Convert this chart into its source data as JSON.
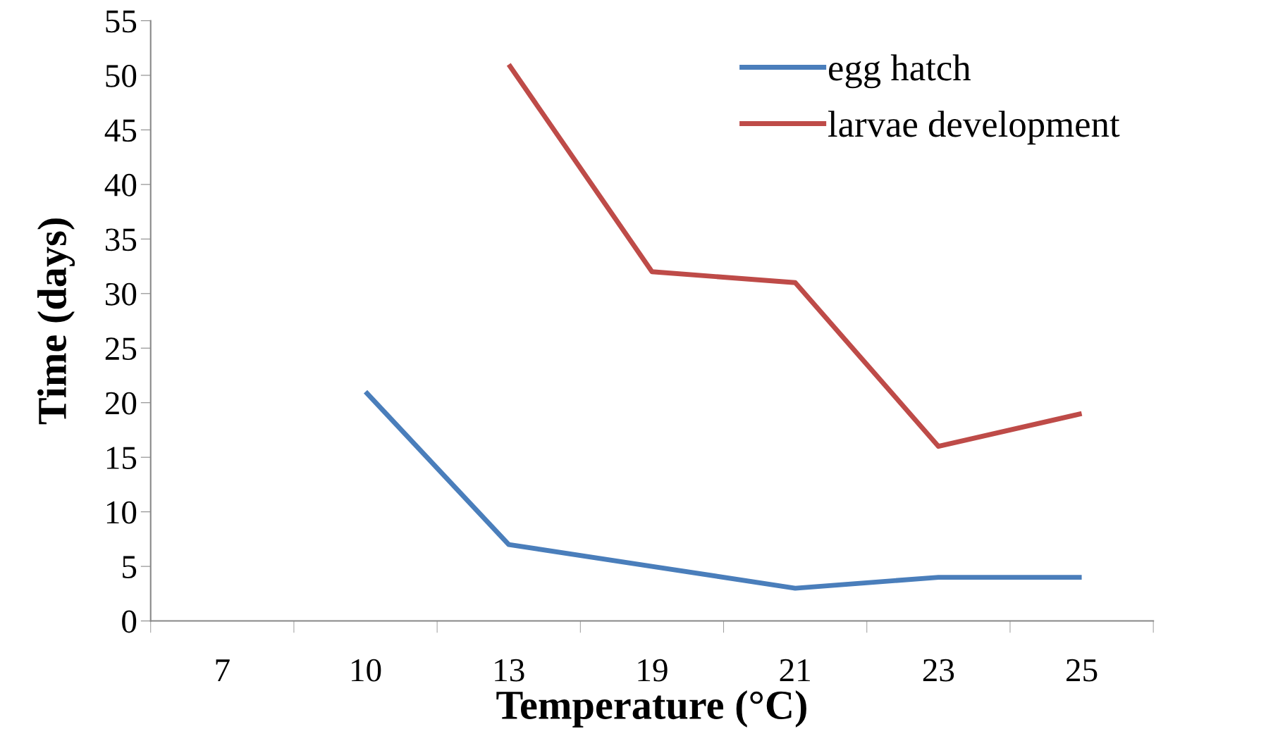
{
  "chart_data": {
    "type": "line",
    "xlabel": "Temperature (°C)",
    "ylabel": "Time (days)",
    "categories": [
      "7",
      "10",
      "13",
      "19",
      "21",
      "23",
      "25"
    ],
    "series": [
      {
        "name": "egg hatch",
        "color": "#4a7ebb",
        "values": [
          null,
          21,
          7,
          5,
          3,
          4,
          4
        ]
      },
      {
        "name": "larvae development",
        "color": "#be4b48",
        "values": [
          null,
          null,
          51,
          32,
          31,
          16,
          19
        ]
      }
    ],
    "ylim": [
      0,
      55
    ],
    "yticks": [
      0,
      5,
      10,
      15,
      20,
      25,
      30,
      35,
      40,
      45,
      50,
      55
    ],
    "grid": false,
    "legend": "top right",
    "marker": "none",
    "line_style": "solid"
  }
}
